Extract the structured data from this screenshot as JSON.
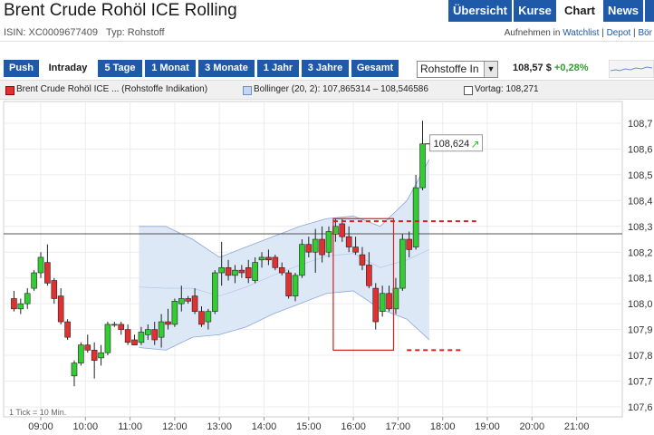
{
  "header": {
    "title": "Brent Crude Rohöl ICE Rolling",
    "nav_tabs": [
      {
        "label": "Übersicht",
        "active": false
      },
      {
        "label": "Kurse",
        "active": false
      },
      {
        "label": "Chart",
        "active": true
      },
      {
        "label": "News",
        "active": false
      }
    ],
    "isin": "ISIN: XC0009677409",
    "type": "Typ: Rohstoff",
    "links_prefix": "Aufnehmen in",
    "link_watchlist": "Watchlist",
    "separator": "|",
    "link_depot": "Depot",
    "link_boerse": "Bör"
  },
  "ranges": [
    {
      "label": "Push",
      "active": false
    },
    {
      "label": "Intraday",
      "active": true
    },
    {
      "label": "5 Tage",
      "active": false
    },
    {
      "label": "1 Monat",
      "active": false
    },
    {
      "label": "3 Monate",
      "active": false
    },
    {
      "label": "1 Jahr",
      "active": false
    },
    {
      "label": "3 Jahre",
      "active": false
    },
    {
      "label": "Gesamt",
      "active": false
    }
  ],
  "select": {
    "value": "Rohstoffe In"
  },
  "quote": {
    "price": "108,57 $",
    "change": "+0,28%"
  },
  "legend": {
    "main": "Brent Crude Rohöl ICE ... (Rohstoffe Indikation)",
    "bollinger": "Bollinger (20, 2): 107,865314 – 108,546586",
    "prev": "Vortag: 108,271"
  },
  "colors": {
    "up": "#33cc33",
    "down": "#e03030",
    "band_fill": "#dde8f7",
    "band_line": "#8aa8d8",
    "accent": "#1e5aa8"
  },
  "chart_data": {
    "type": "candlestick",
    "x_ticks": [
      "09:00",
      "10:00",
      "11:00",
      "12:00",
      "13:00",
      "14:00",
      "15:00",
      "16:00",
      "17:00",
      "18:00",
      "19:00",
      "20:00",
      "21:00"
    ],
    "y_ticks": [
      "108,7",
      "108,6",
      "108,5",
      "108,4",
      "108,3",
      "108,2",
      "108,1",
      "108,0",
      "107,9",
      "107,8",
      "107,7",
      "107,6"
    ],
    "ylim": [
      107.57,
      108.75
    ],
    "previous_close": 108.271,
    "last_value_label": "108,624",
    "footnote": "1 Tick = 10 Min.",
    "annotations": {
      "box": {
        "t_from": 15.55,
        "t_to": 16.9,
        "y_from": 107.82,
        "y_to": 108.33
      },
      "dashed_lines": [
        {
          "t_from": 15.55,
          "t_to": 18.75,
          "y": 108.32
        },
        {
          "t_from": 17.2,
          "t_to": 18.45,
          "y": 107.82
        }
      ]
    },
    "candles": [
      {
        "t": 8.4,
        "o": 108.02,
        "h": 108.05,
        "l": 107.97,
        "c": 107.98
      },
      {
        "t": 8.55,
        "o": 107.98,
        "h": 108.02,
        "l": 107.96,
        "c": 108.0
      },
      {
        "t": 8.7,
        "o": 108.0,
        "h": 108.06,
        "l": 107.98,
        "c": 108.04
      },
      {
        "t": 8.85,
        "o": 108.06,
        "h": 108.13,
        "l": 108.05,
        "c": 108.12
      },
      {
        "t": 9.0,
        "o": 108.12,
        "h": 108.2,
        "l": 108.1,
        "c": 108.18
      },
      {
        "t": 9.15,
        "o": 108.16,
        "h": 108.23,
        "l": 108.07,
        "c": 108.08
      },
      {
        "t": 9.3,
        "o": 108.09,
        "h": 108.1,
        "l": 108.0,
        "c": 108.02
      },
      {
        "t": 9.45,
        "o": 108.03,
        "h": 108.06,
        "l": 107.92,
        "c": 107.93
      },
      {
        "t": 9.6,
        "o": 107.93,
        "h": 107.94,
        "l": 107.86,
        "c": 107.87
      },
      {
        "t": 9.75,
        "o": 107.72,
        "h": 107.78,
        "l": 107.68,
        "c": 107.77
      },
      {
        "t": 9.9,
        "o": 107.77,
        "h": 107.85,
        "l": 107.76,
        "c": 107.84
      },
      {
        "t": 10.05,
        "o": 107.84,
        "h": 107.88,
        "l": 107.81,
        "c": 107.82
      },
      {
        "t": 10.2,
        "o": 107.82,
        "h": 107.85,
        "l": 107.71,
        "c": 107.78
      },
      {
        "t": 10.35,
        "o": 107.79,
        "h": 107.84,
        "l": 107.76,
        "c": 107.81
      },
      {
        "t": 10.5,
        "o": 107.81,
        "h": 107.93,
        "l": 107.8,
        "c": 107.92
      },
      {
        "t": 10.65,
        "o": 107.92,
        "h": 107.93,
        "l": 107.91,
        "c": 107.92
      },
      {
        "t": 10.8,
        "o": 107.92,
        "h": 107.93,
        "l": 107.88,
        "c": 107.9
      },
      {
        "t": 10.95,
        "o": 107.9,
        "h": 107.92,
        "l": 107.84,
        "c": 107.85
      },
      {
        "t": 11.1,
        "o": 107.86,
        "h": 107.88,
        "l": 107.84,
        "c": 107.84
      },
      {
        "t": 11.25,
        "o": 107.85,
        "h": 107.91,
        "l": 107.84,
        "c": 107.89
      },
      {
        "t": 11.4,
        "o": 107.88,
        "h": 107.92,
        "l": 107.86,
        "c": 107.9
      },
      {
        "t": 11.55,
        "o": 107.9,
        "h": 107.93,
        "l": 107.84,
        "c": 107.86
      },
      {
        "t": 11.7,
        "o": 107.87,
        "h": 107.96,
        "l": 107.83,
        "c": 107.93
      },
      {
        "t": 11.85,
        "o": 107.93,
        "h": 107.98,
        "l": 107.9,
        "c": 107.92
      },
      {
        "t": 12.0,
        "o": 107.92,
        "h": 108.02,
        "l": 107.91,
        "c": 108.01
      },
      {
        "t": 12.15,
        "o": 108.0,
        "h": 108.07,
        "l": 107.97,
        "c": 108.02
      },
      {
        "t": 12.3,
        "o": 108.02,
        "h": 108.03,
        "l": 108.0,
        "c": 108.01
      },
      {
        "t": 12.45,
        "o": 108.03,
        "h": 108.06,
        "l": 107.96,
        "c": 107.97
      },
      {
        "t": 12.6,
        "o": 107.97,
        "h": 107.99,
        "l": 107.91,
        "c": 107.92
      },
      {
        "t": 12.75,
        "o": 107.93,
        "h": 107.98,
        "l": 107.9,
        "c": 107.97
      },
      {
        "t": 12.9,
        "o": 107.97,
        "h": 108.13,
        "l": 107.96,
        "c": 108.12
      },
      {
        "t": 13.05,
        "o": 108.12,
        "h": 108.24,
        "l": 108.07,
        "c": 108.14
      },
      {
        "t": 13.2,
        "o": 108.14,
        "h": 108.17,
        "l": 108.09,
        "c": 108.11
      },
      {
        "t": 13.35,
        "o": 108.11,
        "h": 108.15,
        "l": 108.08,
        "c": 108.13
      },
      {
        "t": 13.5,
        "o": 108.13,
        "h": 108.15,
        "l": 108.1,
        "c": 108.12
      },
      {
        "t": 13.65,
        "o": 108.14,
        "h": 108.17,
        "l": 108.08,
        "c": 108.1
      },
      {
        "t": 13.8,
        "o": 108.09,
        "h": 108.18,
        "l": 108.08,
        "c": 108.16
      },
      {
        "t": 13.95,
        "o": 108.17,
        "h": 108.2,
        "l": 108.14,
        "c": 108.18
      },
      {
        "t": 14.1,
        "o": 108.18,
        "h": 108.21,
        "l": 108.15,
        "c": 108.17
      },
      {
        "t": 14.25,
        "o": 108.18,
        "h": 108.19,
        "l": 108.13,
        "c": 108.14
      },
      {
        "t": 14.4,
        "o": 108.14,
        "h": 108.16,
        "l": 108.11,
        "c": 108.12
      },
      {
        "t": 14.55,
        "o": 108.12,
        "h": 108.13,
        "l": 108.02,
        "c": 108.03
      },
      {
        "t": 14.7,
        "o": 108.03,
        "h": 108.12,
        "l": 108.01,
        "c": 108.11
      },
      {
        "t": 14.85,
        "o": 108.11,
        "h": 108.25,
        "l": 108.1,
        "c": 108.23
      },
      {
        "t": 15.0,
        "o": 108.23,
        "h": 108.26,
        "l": 108.18,
        "c": 108.2
      },
      {
        "t": 15.15,
        "o": 108.2,
        "h": 108.29,
        "l": 108.12,
        "c": 108.25
      },
      {
        "t": 15.3,
        "o": 108.25,
        "h": 108.3,
        "l": 108.16,
        "c": 108.19
      },
      {
        "t": 15.45,
        "o": 108.2,
        "h": 108.3,
        "l": 108.18,
        "c": 108.28
      },
      {
        "t": 15.6,
        "o": 108.27,
        "h": 108.33,
        "l": 108.24,
        "c": 108.3
      },
      {
        "t": 15.75,
        "o": 108.31,
        "h": 108.33,
        "l": 108.24,
        "c": 108.26
      },
      {
        "t": 15.9,
        "o": 108.26,
        "h": 108.3,
        "l": 108.2,
        "c": 108.22
      },
      {
        "t": 16.05,
        "o": 108.22,
        "h": 108.26,
        "l": 108.19,
        "c": 108.2
      },
      {
        "t": 16.2,
        "o": 108.19,
        "h": 108.22,
        "l": 108.13,
        "c": 108.15
      },
      {
        "t": 16.35,
        "o": 108.15,
        "h": 108.2,
        "l": 108.06,
        "c": 108.07
      },
      {
        "t": 16.5,
        "o": 108.06,
        "h": 108.08,
        "l": 107.9,
        "c": 107.93
      },
      {
        "t": 16.65,
        "o": 107.97,
        "h": 108.07,
        "l": 107.95,
        "c": 108.04
      },
      {
        "t": 16.8,
        "o": 108.04,
        "h": 108.07,
        "l": 107.97,
        "c": 107.98
      },
      {
        "t": 16.95,
        "o": 107.98,
        "h": 108.1,
        "l": 107.96,
        "c": 108.06
      },
      {
        "t": 17.1,
        "o": 108.06,
        "h": 108.27,
        "l": 108.05,
        "c": 108.25
      },
      {
        "t": 17.25,
        "o": 108.25,
        "h": 108.28,
        "l": 108.18,
        "c": 108.21
      },
      {
        "t": 17.4,
        "o": 108.22,
        "h": 108.5,
        "l": 108.21,
        "c": 108.45
      },
      {
        "t": 17.55,
        "o": 108.45,
        "h": 108.71,
        "l": 108.44,
        "c": 108.62
      }
    ],
    "bollinger": [
      {
        "t": 11.2,
        "u": 108.3,
        "l": 107.83
      },
      {
        "t": 11.8,
        "u": 108.3,
        "l": 107.82
      },
      {
        "t": 12.4,
        "u": 108.25,
        "l": 107.87
      },
      {
        "t": 13.0,
        "u": 108.18,
        "l": 107.88
      },
      {
        "t": 13.6,
        "u": 108.22,
        "l": 107.91
      },
      {
        "t": 14.2,
        "u": 108.26,
        "l": 107.96
      },
      {
        "t": 14.8,
        "u": 108.3,
        "l": 108.0
      },
      {
        "t": 15.4,
        "u": 108.33,
        "l": 108.04
      },
      {
        "t": 16.0,
        "u": 108.34,
        "l": 108.05
      },
      {
        "t": 16.6,
        "u": 108.3,
        "l": 107.98
      },
      {
        "t": 17.2,
        "u": 108.4,
        "l": 107.94
      },
      {
        "t": 17.7,
        "u": 108.56,
        "l": 107.86
      }
    ]
  }
}
